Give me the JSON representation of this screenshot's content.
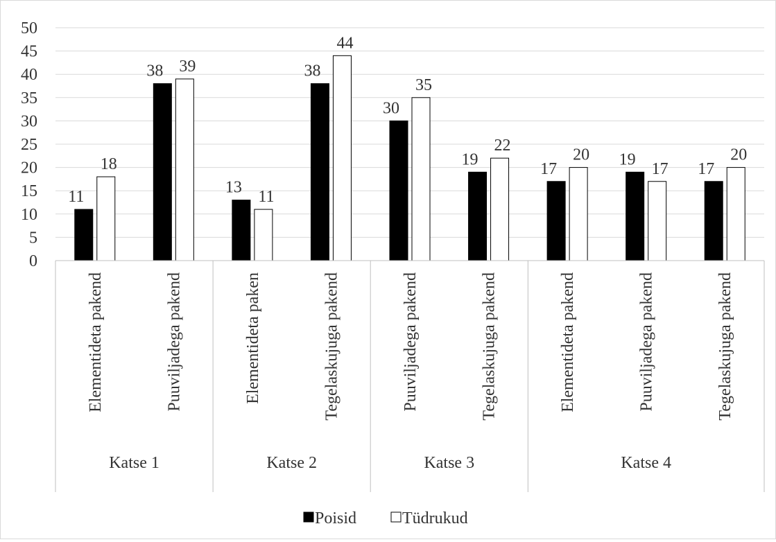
{
  "chart_data": {
    "type": "bar",
    "groups": [
      {
        "label": "Katse 1",
        "categories": [
          "Elementideta pakend",
          "Puuviljadega pakend"
        ]
      },
      {
        "label": "Katse 2",
        "categories": [
          "Elementideta paken",
          "Tegelaskujuga pakend"
        ]
      },
      {
        "label": "Katse 3",
        "categories": [
          "Puuviljadega pakend",
          "Tegelaskujuga pakend"
        ]
      },
      {
        "label": "Katse 4",
        "categories": [
          "Elementideta pakend",
          "Puuviljadega pakend",
          "Tegelaskujuga pakend"
        ]
      }
    ],
    "categories": [
      "Elementideta pakend",
      "Puuviljadega pakend",
      "Elementideta paken",
      "Tegelaskujuga pakend",
      "Puuviljadega pakend",
      "Tegelaskujuga pakend",
      "Elementideta pakend",
      "Puuviljadega pakend",
      "Tegelaskujuga pakend"
    ],
    "series": [
      {
        "name": "Poisid",
        "values": [
          11,
          38,
          13,
          38,
          30,
          19,
          17,
          19,
          17
        ],
        "color": "#000000"
      },
      {
        "name": "Tüdrukud",
        "values": [
          18,
          39,
          11,
          44,
          35,
          22,
          20,
          17,
          20
        ],
        "color": "#ffffff"
      }
    ],
    "yticks": [
      "0",
      "5",
      "10",
      "15",
      "20",
      "25",
      "30",
      "35",
      "40",
      "45",
      "50"
    ],
    "ylim": [
      0,
      50
    ],
    "grid": true,
    "data_labels": true,
    "legend_position": "bottom",
    "title": "",
    "xlabel": "",
    "ylabel": ""
  }
}
